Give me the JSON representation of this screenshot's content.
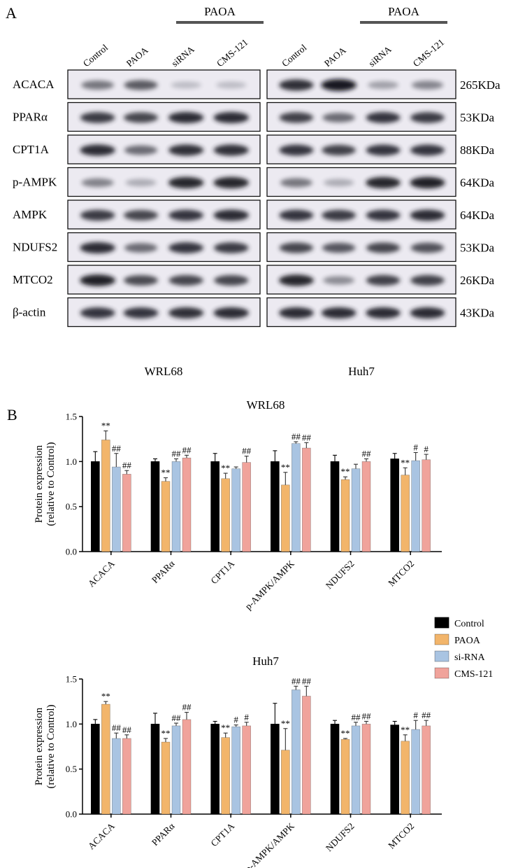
{
  "panel_a": {
    "label": "A",
    "treatment_label": "PAOA",
    "lanes": [
      "Control",
      "PAOA",
      "siRNA",
      "CMS-121"
    ],
    "proteins": [
      "ACACA",
      "PPARα",
      "CPT1A",
      "p-AMPK",
      "AMPK",
      "NDUFS2",
      "MTCO2",
      "β-actin"
    ],
    "sizes": [
      "265KDa",
      "53KDa",
      "88KDa",
      "64KDa",
      "64KDa",
      "53KDa",
      "26KDa",
      "43KDa"
    ],
    "cell_lines": [
      "WRL68",
      "Huh7"
    ],
    "band_intensity": [
      [
        [
          0.55,
          0.68,
          0.22,
          0.22
        ],
        [
          0.88,
          1.0,
          0.35,
          0.48
        ]
      ],
      [
        [
          0.82,
          0.78,
          0.9,
          0.9
        ],
        [
          0.8,
          0.6,
          0.85,
          0.82
        ]
      ],
      [
        [
          0.9,
          0.6,
          0.88,
          0.88
        ],
        [
          0.85,
          0.8,
          0.85,
          0.85
        ]
      ],
      [
        [
          0.5,
          0.3,
          0.92,
          0.92
        ],
        [
          0.55,
          0.3,
          0.92,
          0.95
        ]
      ],
      [
        [
          0.82,
          0.78,
          0.85,
          0.9
        ],
        [
          0.85,
          0.82,
          0.85,
          0.9
        ]
      ],
      [
        [
          0.9,
          0.6,
          0.85,
          0.82
        ],
        [
          0.78,
          0.7,
          0.78,
          0.72
        ]
      ],
      [
        [
          0.95,
          0.75,
          0.78,
          0.78
        ],
        [
          0.92,
          0.45,
          0.8,
          0.8
        ]
      ],
      [
        [
          0.85,
          0.85,
          0.88,
          0.9
        ],
        [
          0.9,
          0.9,
          0.9,
          0.9
        ]
      ]
    ]
  },
  "panel_b_label": "B",
  "legend": {
    "items": [
      "Control",
      "PAOA",
      "si-RNA",
      "CMS-121"
    ],
    "colors": [
      "#000000",
      "#f2b56b",
      "#a9c4e2",
      "#f0a39b"
    ]
  },
  "chart_data": [
    {
      "type": "bar",
      "title": "WRL68",
      "ylabel_line1": "Protein expression",
      "ylabel_line2": "(relative to Control)",
      "ylim": [
        0,
        1.5
      ],
      "yticks": [
        0.0,
        0.5,
        1.0,
        1.5
      ],
      "categories": [
        "ACACA",
        "PPARα",
        "CPT1A",
        "p-AMPK/AMPK",
        "NDUFS2",
        "MTCO2"
      ],
      "series": [
        {
          "name": "Control",
          "values": [
            1.0,
            1.0,
            1.0,
            1.0,
            1.0,
            1.03
          ],
          "errors": [
            0.11,
            0.03,
            0.09,
            0.12,
            0.07,
            0.06
          ],
          "marks": [
            "",
            "",
            "",
            "",
            "",
            ""
          ]
        },
        {
          "name": "PAOA",
          "values": [
            1.24,
            0.78,
            0.81,
            0.74,
            0.8,
            0.85
          ],
          "errors": [
            0.1,
            0.04,
            0.06,
            0.14,
            0.03,
            0.08
          ],
          "marks": [
            "**",
            "**",
            "**",
            "**",
            "**",
            "**"
          ]
        },
        {
          "name": "si-RNA",
          "values": [
            0.94,
            1.0,
            0.92,
            1.2,
            0.92,
            1.01
          ],
          "errors": [
            0.15,
            0.03,
            0.02,
            0.02,
            0.05,
            0.09
          ],
          "marks": [
            "##",
            "##",
            "",
            "##",
            "",
            "#"
          ]
        },
        {
          "name": "CMS-121",
          "values": [
            0.86,
            1.04,
            0.99,
            1.15,
            1.0,
            1.02
          ],
          "errors": [
            0.04,
            0.03,
            0.07,
            0.06,
            0.03,
            0.06
          ],
          "marks": [
            "##",
            "##",
            "##",
            "##",
            "##",
            "#"
          ]
        }
      ]
    },
    {
      "type": "bar",
      "title": "Huh7",
      "ylabel_line1": "Protein expression",
      "ylabel_line2": "(relative to Control)",
      "ylim": [
        0,
        1.5
      ],
      "yticks": [
        0.0,
        0.5,
        1.0,
        1.5
      ],
      "categories": [
        "ACACA",
        "PPARα",
        "CPT1A",
        "p-AMPK/AMPK",
        "NDUFS2",
        "MTCO2"
      ],
      "series": [
        {
          "name": "Control",
          "values": [
            1.0,
            1.0,
            1.0,
            1.0,
            1.0,
            0.99
          ],
          "errors": [
            0.05,
            0.12,
            0.03,
            0.23,
            0.04,
            0.04
          ],
          "marks": [
            "",
            "",
            "",
            "",
            "",
            ""
          ]
        },
        {
          "name": "PAOA",
          "values": [
            1.22,
            0.8,
            0.85,
            0.71,
            0.83,
            0.81
          ],
          "errors": [
            0.03,
            0.04,
            0.05,
            0.24,
            0.01,
            0.07
          ],
          "marks": [
            "**",
            "**",
            "**",
            "**",
            "**",
            "**"
          ]
        },
        {
          "name": "si-RNA",
          "values": [
            0.84,
            0.98,
            0.97,
            1.38,
            0.98,
            0.94
          ],
          "errors": [
            0.06,
            0.03,
            0.02,
            0.04,
            0.04,
            0.1
          ],
          "marks": [
            "##",
            "##",
            "#",
            "##",
            "##",
            "#"
          ]
        },
        {
          "name": "CMS-121",
          "values": [
            0.84,
            1.05,
            0.98,
            1.31,
            1.0,
            0.98
          ],
          "errors": [
            0.04,
            0.08,
            0.04,
            0.11,
            0.03,
            0.06
          ],
          "marks": [
            "##",
            "##",
            "#",
            "##",
            "##",
            "##"
          ]
        }
      ]
    }
  ]
}
